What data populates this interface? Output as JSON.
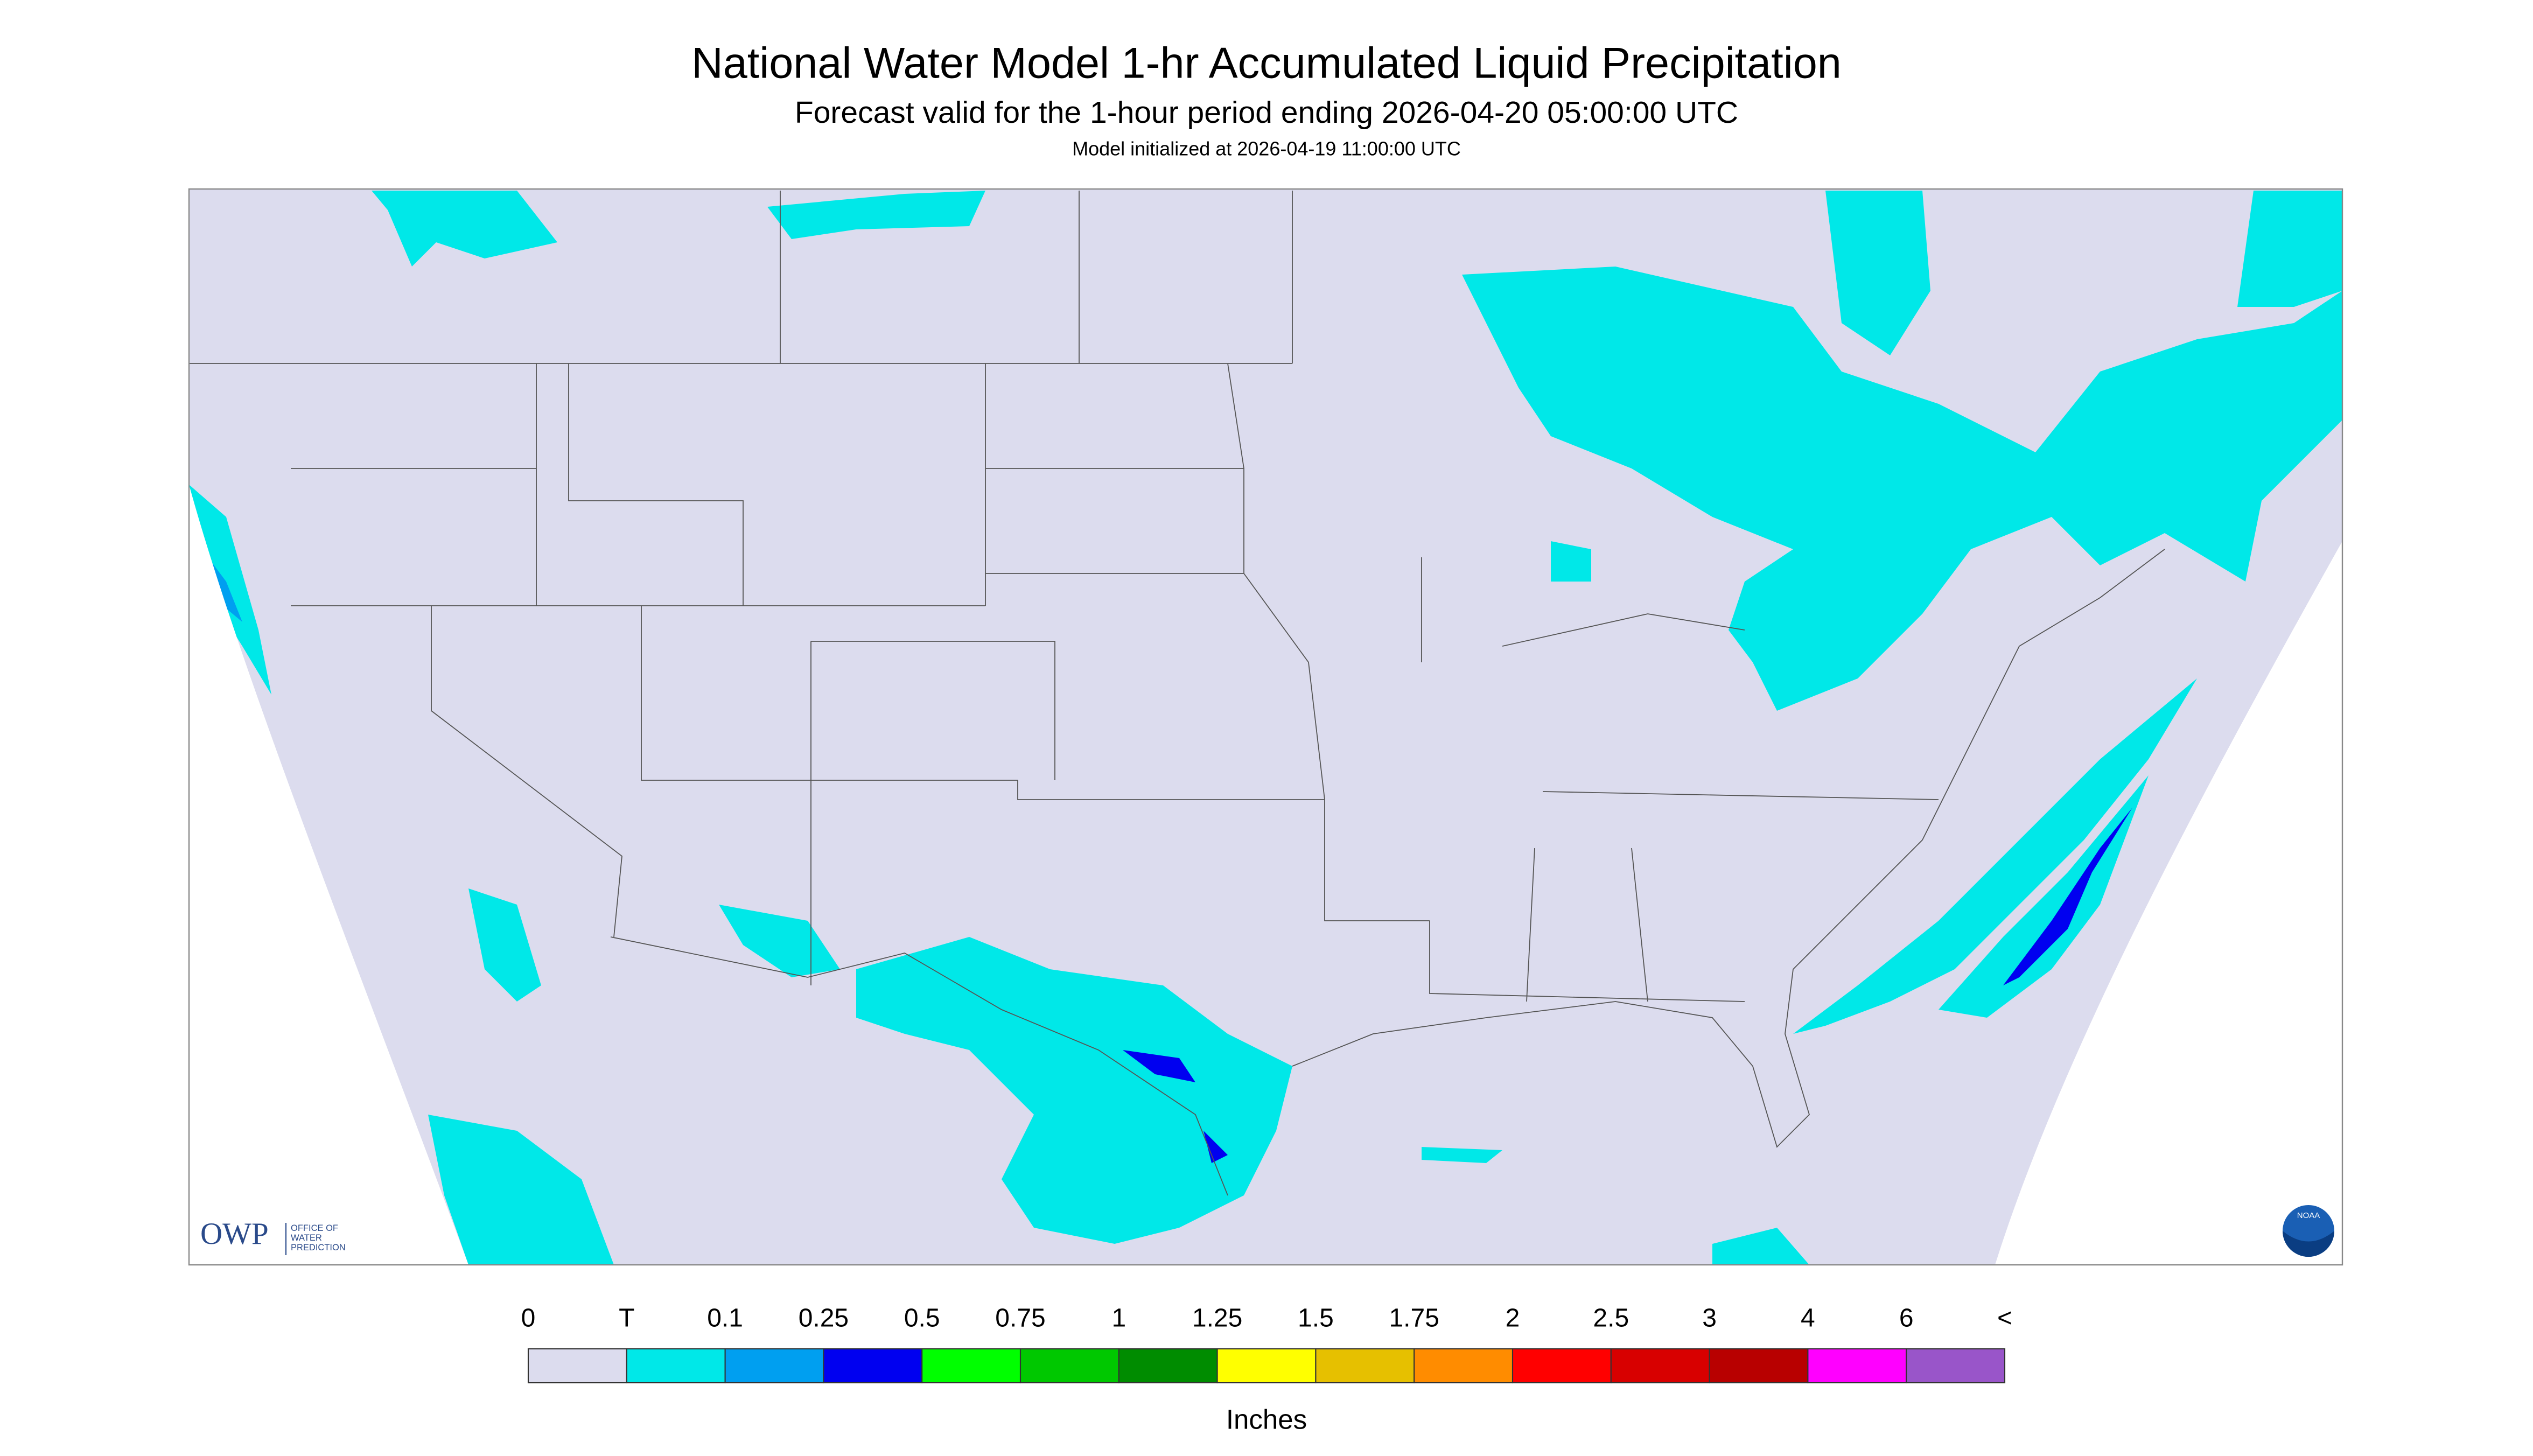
{
  "header": {
    "title": "National Water Model 1-hr Accumulated Liquid Precipitation",
    "subtitle": "Forecast valid for the 1-hour period ending 2026-04-20 05:00:00 UTC",
    "init": "Model initialized at 2026-04-19 11:00:00 UTC"
  },
  "logo": {
    "name": "OWP",
    "office": [
      "OFFICE OF",
      "WATER",
      "PREDICTION"
    ],
    "noaa": "NOAA"
  },
  "legend": {
    "labels": [
      "0",
      "T",
      "0.1",
      "0.25",
      "0.5",
      "0.75",
      "1",
      "1.25",
      "1.5",
      "1.75",
      "2",
      "2.5",
      "3",
      "4",
      "6",
      "<"
    ],
    "colors": [
      "#dcdcee",
      "#00e8e8",
      "#009ff0",
      "#0000f0",
      "#00ff00",
      "#00c800",
      "#008c00",
      "#ffff00",
      "#e6c000",
      "#ff8c00",
      "#ff0000",
      "#d80000",
      "#b80000",
      "#ff00ff",
      "#9955c9"
    ],
    "units": "Inches"
  }
}
